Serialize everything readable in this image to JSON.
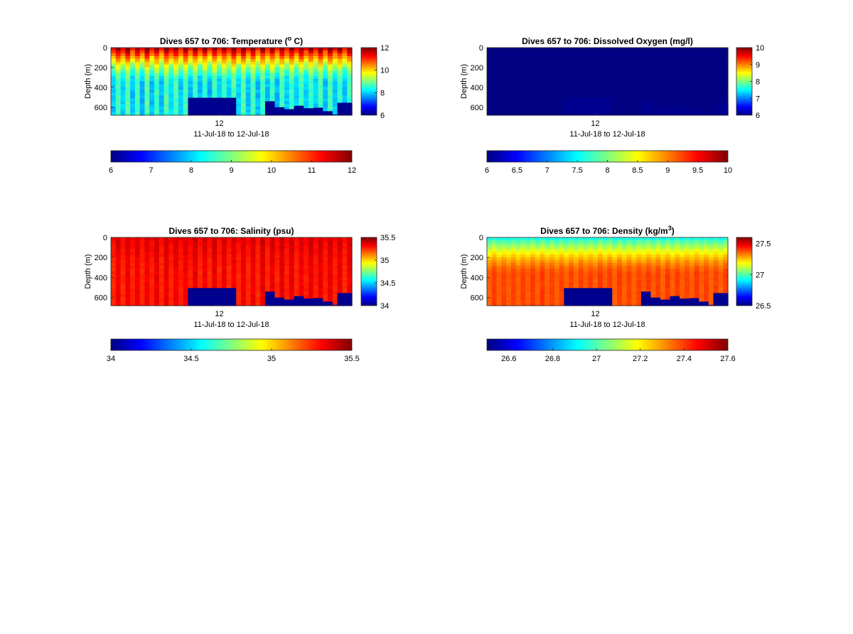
{
  "chart_data": [
    {
      "type": "heatmap",
      "title": "Dives 657 to 706: Temperature (",
      "title_sup": "o",
      "title_tail": " C)",
      "xlabel": "11-Jul-18 to 12-Jul-18",
      "ylabel": "Depth (m)",
      "x_ticks": [
        "12"
      ],
      "y_ticks": [
        "0",
        "200",
        "400",
        "600"
      ],
      "ylim": [
        0,
        680
      ],
      "colormap": "jet",
      "clim": [
        6,
        12
      ],
      "side_colorbar_ticks": [
        "12",
        "10",
        "8",
        "6"
      ],
      "bottom_colorbar_ticks": [
        "6",
        "7",
        "8",
        "9",
        "10",
        "11",
        "12"
      ],
      "surface_value": 11.6,
      "deep_value": 8.3,
      "stripe_variation": 0.25
    },
    {
      "type": "heatmap",
      "title": "Dives 657 to 706: Dissolved Oxygen (mg/l)",
      "xlabel": "11-Jul-18 to 12-Jul-18",
      "ylabel": "Depth (m)",
      "x_ticks": [
        "12"
      ],
      "y_ticks": [
        "0",
        "200",
        "400",
        "600"
      ],
      "ylim": [
        0,
        680
      ],
      "colormap": "jet",
      "clim": [
        6,
        10
      ],
      "side_colorbar_ticks": [
        "10",
        "9",
        "8",
        "7",
        "6"
      ],
      "bottom_colorbar_ticks": [
        "6",
        "6.5",
        "7",
        "7.5",
        "8",
        "8.5",
        "9",
        "9.5",
        "10"
      ],
      "uniform_value": 6.0
    },
    {
      "type": "heatmap",
      "title": "Dives 657 to 706: Salinity (psu)",
      "xlabel": "11-Jul-18 to 12-Jul-18",
      "ylabel": "Depth (m)",
      "x_ticks": [
        "12"
      ],
      "y_ticks": [
        "0",
        "200",
        "400",
        "600"
      ],
      "ylim": [
        0,
        680
      ],
      "colormap": "jet",
      "clim": [
        34,
        35.5
      ],
      "side_colorbar_ticks": [
        "35.5",
        "35",
        "34.5",
        "34"
      ],
      "bottom_colorbar_ticks": [
        "34",
        "34.5",
        "35",
        "35.5"
      ],
      "surface_value": 35.35,
      "deep_value": 35.3,
      "stripe_variation": 0.1
    },
    {
      "type": "heatmap",
      "title": "Dives 657 to 706: Density (kg/m",
      "title_sup": "3",
      "title_tail": ")",
      "xlabel": "11-Jul-18 to 12-Jul-18",
      "ylabel": "Depth (m)",
      "x_ticks": [
        "12"
      ],
      "y_ticks": [
        "0",
        "200",
        "400",
        "600"
      ],
      "ylim": [
        0,
        680
      ],
      "colormap": "jet",
      "clim": [
        26.5,
        27.6
      ],
      "side_colorbar_ticks": [
        "27.5",
        "27",
        "26.5"
      ],
      "bottom_colorbar_ticks": [
        "26.6",
        "26.8",
        "27",
        "27.2",
        "27.4",
        "27.6"
      ],
      "surface_value": 26.95,
      "deep_value": 27.38,
      "stripe_variation": 0.07
    }
  ],
  "seafloor": {
    "n_dives": 50,
    "blocks": [
      {
        "from_dive": 17,
        "to_dive": 26,
        "depth": 505
      },
      {
        "from_dive": 33,
        "to_dive": 34,
        "depth": 540
      },
      {
        "from_dive": 35,
        "to_dive": 36,
        "depth": 600
      },
      {
        "from_dive": 37,
        "to_dive": 38,
        "depth": 620
      },
      {
        "from_dive": 39,
        "to_dive": 40,
        "depth": 585
      },
      {
        "from_dive": 41,
        "to_dive": 42,
        "depth": 610
      },
      {
        "from_dive": 43,
        "to_dive": 44,
        "depth": 605
      },
      {
        "from_dive": 45,
        "to_dive": 46,
        "depth": 640
      },
      {
        "from_dive": 47,
        "to_dive": 47,
        "depth": 672
      },
      {
        "from_dive": 48,
        "to_dive": 50,
        "depth": 555
      }
    ]
  }
}
